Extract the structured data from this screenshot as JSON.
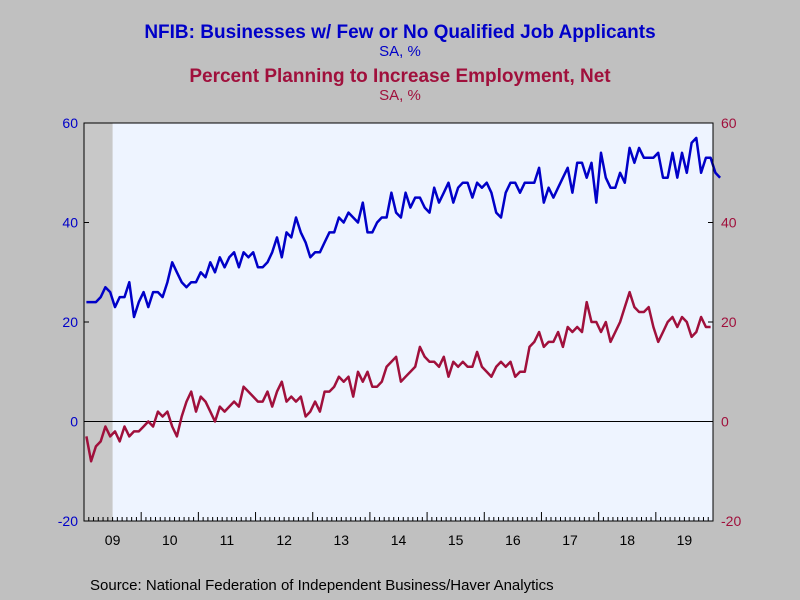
{
  "chart_data": {
    "type": "line",
    "title_1": "NFIB: Businesses w/ Few or No Qualified Job Applicants",
    "subtitle_1": "SA, %",
    "title_2": "Percent Planning to Increase Employment, Net",
    "subtitle_2": "SA, %",
    "source": "Source:  National Federation of Independent Business/Haver Analytics",
    "colors": {
      "series_1": "#0000c8",
      "series_2": "#a0103c",
      "plot_bg": "#eef4ff",
      "recession": "#c8c8c8"
    },
    "x_labels": [
      "09",
      "10",
      "11",
      "12",
      "13",
      "14",
      "15",
      "16",
      "17",
      "18",
      "19"
    ],
    "x_start": "2009-01",
    "x_end": "2019-12",
    "recession_shade": [
      "2009-01",
      "2009-06"
    ],
    "y_left": {
      "min": -20,
      "max": 60,
      "ticks": [
        "-20",
        "0",
        "20",
        "40",
        "60"
      ]
    },
    "y_right": {
      "min": -20,
      "max": 60,
      "ticks": [
        "-20",
        "0",
        "20",
        "40",
        "60"
      ]
    },
    "zero_line": true,
    "series": [
      {
        "name": "NFIB: Businesses w/ Few or No Qualified Job Applicants",
        "axis": "left",
        "start": "2009-01",
        "values": [
          24,
          24,
          24,
          25,
          27,
          26,
          23,
          25,
          25,
          28,
          21,
          24,
          26,
          23,
          26,
          26,
          25,
          28,
          32,
          30,
          28,
          27,
          28,
          28,
          30,
          29,
          32,
          30,
          33,
          31,
          33,
          34,
          31,
          34,
          33,
          34,
          31,
          31,
          32,
          34,
          37,
          33,
          38,
          37,
          41,
          38,
          36,
          33,
          34,
          34,
          36,
          38,
          38,
          41,
          40,
          42,
          41,
          40,
          44,
          38,
          38,
          40,
          41,
          41,
          46,
          42,
          41,
          46,
          43,
          45,
          45,
          43,
          42,
          47,
          44,
          46,
          48,
          44,
          47,
          48,
          48,
          45,
          48,
          47,
          48,
          46,
          42,
          41,
          46,
          48,
          48,
          46,
          48,
          48,
          48,
          51,
          44,
          47,
          45,
          47,
          49,
          51,
          46,
          52,
          52,
          49,
          52,
          44,
          54,
          49,
          47,
          47,
          50,
          48,
          55,
          52,
          55,
          53,
          53,
          53,
          54,
          49,
          49,
          54,
          49,
          54,
          50,
          56,
          57,
          50,
          53,
          53,
          50,
          49
        ]
      },
      {
        "name": "Percent Planning to Increase Employment, Net",
        "axis": "right",
        "start": "2009-01",
        "values": [
          -3,
          -8,
          -5,
          -4,
          -1,
          -3,
          -2,
          -4,
          -1,
          -3,
          -2,
          -2,
          -1,
          0,
          -1,
          2,
          1,
          2,
          -1,
          -3,
          1,
          4,
          6,
          2,
          5,
          4,
          2,
          0,
          3,
          2,
          3,
          4,
          3,
          7,
          6,
          5,
          4,
          4,
          6,
          3,
          6,
          8,
          4,
          5,
          4,
          5,
          1,
          2,
          4,
          2,
          6,
          6,
          7,
          9,
          8,
          9,
          5,
          10,
          8,
          10,
          7,
          7,
          8,
          11,
          12,
          13,
          8,
          9,
          10,
          11,
          15,
          13,
          12,
          12,
          11,
          13,
          9,
          12,
          11,
          12,
          11,
          11,
          14,
          11,
          10,
          9,
          11,
          12,
          11,
          12,
          9,
          10,
          10,
          15,
          16,
          18,
          15,
          16,
          16,
          18,
          15,
          19,
          18,
          19,
          18,
          24,
          20,
          20,
          18,
          20,
          16,
          18,
          20,
          23,
          26,
          23,
          22,
          22,
          23,
          19,
          16,
          18,
          20,
          21,
          19,
          21,
          20,
          17,
          18,
          21,
          19,
          19
        ]
      }
    ]
  }
}
